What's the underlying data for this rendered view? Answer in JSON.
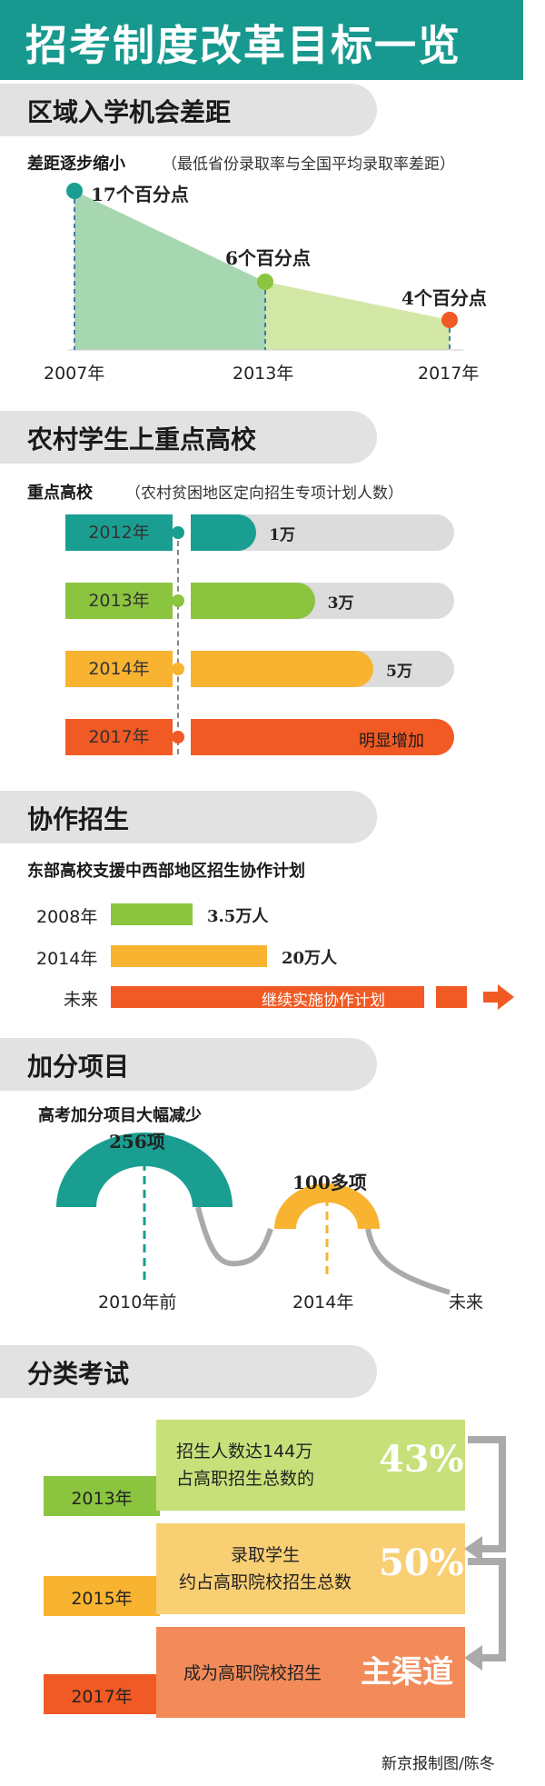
{
  "title": "招考制度改革目标一览",
  "sections": {
    "s1": {
      "heading": "区域入学机会差距",
      "subtitle": "差距逐步缩小",
      "note": "（最低省份录取率与全国平均录取率差距）",
      "points": [
        {
          "year": "2007年",
          "label": "17个百分点",
          "value": 17,
          "color": "#1a9e91"
        },
        {
          "year": "2013年",
          "label": "6个百分点",
          "value": 6,
          "color": "#8bc43f"
        },
        {
          "year": "2017年",
          "label": "4个百分点",
          "value": 4,
          "color": "#f15a24"
        }
      ]
    },
    "s2": {
      "heading": "农村学生上重点高校",
      "subtitle": "重点高校",
      "note": "（农村贫困地区定向招生专项计划人数）",
      "rows": [
        {
          "year": "2012年",
          "label": "1万",
          "value": 1,
          "color": "#1a9e91"
        },
        {
          "year": "2013年",
          "label": "3万",
          "value": 3,
          "color": "#8bc43f"
        },
        {
          "year": "2014年",
          "label": "5万",
          "value": 5,
          "color": "#f8b331"
        },
        {
          "year": "2017年",
          "label": "明显增加",
          "value": null,
          "color": "#f15a24"
        }
      ]
    },
    "s3": {
      "heading": "协作招生",
      "subtitle": "东部高校支援中西部地区招生协作计划",
      "rows": [
        {
          "year": "2008年",
          "label": "3.5万人",
          "value": 3.5,
          "color": "#8bc43f"
        },
        {
          "year": "2014年",
          "label": "20万人",
          "value": 20,
          "color": "#f8b331"
        },
        {
          "year": "未来",
          "label": "继续实施协作计划",
          "value": null,
          "color": "#f15a24"
        }
      ]
    },
    "s4": {
      "heading": "加分项目",
      "subtitle": "高考加分项目大幅减少",
      "points": [
        {
          "year": "2010年前",
          "label": "256项",
          "value": 256,
          "color": "#1a9e91"
        },
        {
          "year": "2014年",
          "label": "100多项",
          "value": 100,
          "color": "#f8b331"
        },
        {
          "year": "未来",
          "label": "",
          "value": null,
          "color": "#aaaaaa"
        }
      ]
    },
    "s5": {
      "heading": "分类考试",
      "rows": [
        {
          "year": "2013年",
          "line1": "招生人数达144万",
          "line2": "占高职招生总数的",
          "big": "43%",
          "tag_color": "#8bc43f",
          "box_color": "#c7e07a"
        },
        {
          "year": "2015年",
          "line1": "录取学生",
          "line2": "约占高职院校招生总数",
          "big": "50%",
          "tag_color": "#f8b331",
          "box_color": "#f9cf74"
        },
        {
          "year": "2017年",
          "line1": "成为高职院校招生",
          "line2": "",
          "big": "主渠道",
          "tag_color": "#f15a24",
          "box_color": "#f28a59"
        }
      ]
    }
  },
  "credit": "新京报制图/陈冬",
  "chart_data": [
    {
      "type": "area",
      "title": "区域入学机会差距",
      "subtitle": "差距逐步缩小",
      "note": "（最低省份录取率与全国平均录取率差距）",
      "x": [
        "2007年",
        "2013年",
        "2017年"
      ],
      "values": [
        17,
        6,
        4
      ],
      "unit": "个百分点"
    },
    {
      "type": "bar",
      "title": "农村学生上重点高校",
      "subtitle": "重点高校",
      "note": "（农村贫困地区定向招生专项计划人数）",
      "categories": [
        "2012年",
        "2013年",
        "2014年",
        "2017年"
      ],
      "values": [
        1,
        3,
        5,
        null
      ],
      "unit": "万",
      "annotations": {
        "2017年": "明显增加"
      }
    },
    {
      "type": "bar",
      "title": "协作招生",
      "subtitle": "东部高校支援中西部地区招生协作计划",
      "categories": [
        "2008年",
        "2014年",
        "未来"
      ],
      "values": [
        3.5,
        20,
        null
      ],
      "unit": "万人",
      "annotations": {
        "未来": "继续实施协作计划"
      }
    },
    {
      "type": "line",
      "title": "加分项目",
      "subtitle": "高考加分项目大幅减少",
      "x": [
        "2010年前",
        "2014年",
        "未来"
      ],
      "values": [
        256,
        100,
        null
      ],
      "labels": [
        "256项",
        "100多项",
        ""
      ]
    },
    {
      "type": "table",
      "title": "分类考试",
      "rows": [
        [
          "2013年",
          "招生人数达144万占高职招生总数的",
          "43%"
        ],
        [
          "2015年",
          "录取学生约占高职院校招生总数",
          "50%"
        ],
        [
          "2017年",
          "成为高职院校招生",
          "主渠道"
        ]
      ]
    }
  ]
}
